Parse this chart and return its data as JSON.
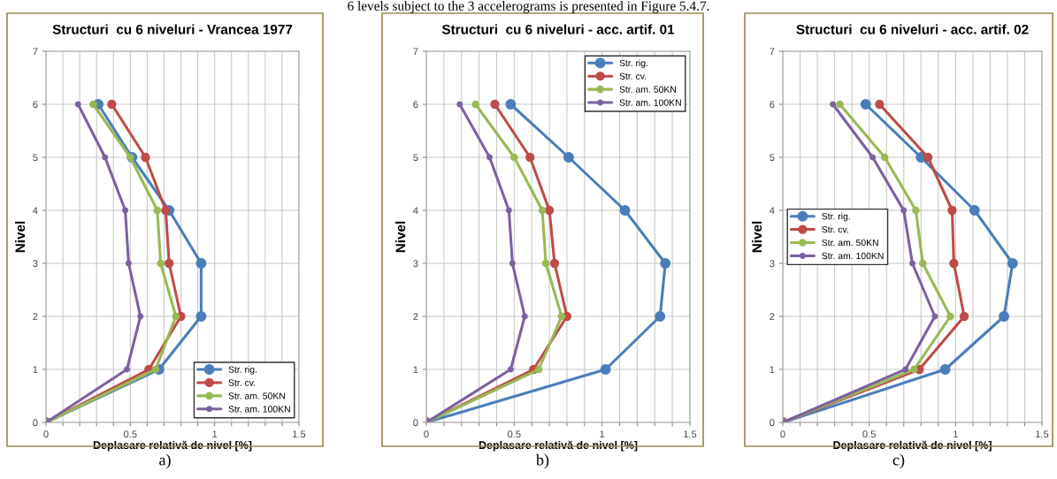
{
  "chart_data": [
    {
      "type": "line",
      "title": "Structuri  cu 6 niveluri - Vrancea 1977",
      "xlabel": "Deplasare relativă de nivel [%]",
      "ylabel": "Nivel",
      "marker": "circle",
      "grid": true,
      "legend": "bottom right",
      "xlim": [
        0,
        1.5
      ],
      "ylim": [
        0,
        7
      ],
      "xticks": [
        0,
        {
          "value": 0.1,
          "label": null
        },
        {
          "value": 0.2,
          "label": null
        },
        {
          "value": 0.3,
          "label": null
        },
        {
          "value": 0.4,
          "label": null
        },
        0.5,
        {
          "value": 0.6,
          "label": null
        },
        {
          "value": 0.7,
          "label": null
        },
        {
          "value": 0.8,
          "label": null
        },
        {
          "value": 0.9,
          "label": null
        },
        1,
        {
          "value": 1.1,
          "label": null
        },
        {
          "value": 1.2,
          "label": null
        },
        {
          "value": 1.3,
          "label": null
        },
        {
          "value": 1.4,
          "label": null
        },
        1.5
      ],
      "yticks": [
        0,
        1,
        2,
        3,
        4,
        5,
        6,
        7
      ],
      "annotations": [
        "6 levels subject to the 3 accelerograms is presented in Figure 5.4.7.",
        "a)"
      ],
      "series": [
        {
          "name": "Str. rig.",
          "color": "#4a7ebb",
          "x": [
            0,
            0.67,
            0.92,
            0.92,
            0.73,
            0.51,
            0.31
          ],
          "values": [
            0,
            1,
            2,
            3,
            4,
            5,
            6
          ]
        },
        {
          "name": "Str. cv.",
          "color": "#be4b48",
          "x": [
            0,
            0.61,
            0.8,
            0.73,
            0.71,
            0.59,
            0.39
          ],
          "values": [
            0,
            1,
            2,
            3,
            4,
            5,
            6
          ]
        },
        {
          "name": "Str. am. 50KN",
          "color": "#98b954",
          "x": [
            0,
            0.65,
            0.77,
            0.68,
            0.66,
            0.5,
            0.28
          ],
          "values": [
            0,
            1,
            2,
            3,
            4,
            5,
            6
          ]
        },
        {
          "name": "Str. am. 100KN",
          "color": "#7d60a0",
          "x": [
            0,
            0.48,
            0.56,
            0.49,
            0.47,
            0.35,
            0.19
          ],
          "values": [
            0,
            1,
            2,
            3,
            4,
            5,
            6
          ]
        }
      ]
    },
    {
      "type": "line",
      "title": "Structuri  cu 6 niveluri - acc. artif. 01",
      "xlabel": "Deplasare relativă de nivel [%]",
      "ylabel": "Nivel",
      "marker": "circle",
      "grid": true,
      "legend": "top right",
      "xlim": [
        0,
        1.5
      ],
      "ylim": [
        0,
        7
      ],
      "xticks": [
        0,
        {
          "value": 0.1,
          "label": null
        },
        {
          "value": 0.2,
          "label": null
        },
        {
          "value": 0.3,
          "label": null
        },
        {
          "value": 0.4,
          "label": null
        },
        0.5,
        {
          "value": 0.6,
          "label": null
        },
        {
          "value": 0.7,
          "label": null
        },
        {
          "value": 0.8,
          "label": null
        },
        {
          "value": 0.9,
          "label": null
        },
        1,
        {
          "value": 1.1,
          "label": null
        },
        {
          "value": 1.2,
          "label": null
        },
        {
          "value": 1.3,
          "label": null
        },
        {
          "value": 1.4,
          "label": null
        },
        1.5
      ],
      "yticks": [
        0,
        1,
        2,
        3,
        4,
        5,
        6,
        7
      ],
      "annotations": [
        "b)"
      ],
      "series": [
        {
          "name": "Str. rig.",
          "color": "#4a7ebb",
          "x": [
            0,
            1.02,
            1.33,
            1.36,
            1.13,
            0.81,
            0.48
          ],
          "values": [
            0,
            1,
            2,
            3,
            4,
            5,
            6
          ]
        },
        {
          "name": "Str. cv.",
          "color": "#be4b48",
          "x": [
            0,
            0.61,
            0.8,
            0.73,
            0.7,
            0.59,
            0.39
          ],
          "values": [
            0,
            1,
            2,
            3,
            4,
            5,
            6
          ]
        },
        {
          "name": "Str. am. 50KN",
          "color": "#98b954",
          "x": [
            0,
            0.64,
            0.77,
            0.68,
            0.66,
            0.5,
            0.28
          ],
          "values": [
            0,
            1,
            2,
            3,
            4,
            5,
            6
          ]
        },
        {
          "name": "Str. am. 100KN",
          "color": "#7d60a0",
          "x": [
            0,
            0.48,
            0.56,
            0.49,
            0.47,
            0.36,
            0.19
          ],
          "values": [
            0,
            1,
            2,
            3,
            4,
            5,
            6
          ]
        }
      ]
    },
    {
      "type": "line",
      "title": "Structuri  cu 6 niveluri - acc. artif. 02",
      "xlabel": "Deplasare relativă de nivel [%]",
      "ylabel": "Nivel",
      "marker": "circle",
      "grid": true,
      "legend": "center left",
      "xlim": [
        0,
        1.5
      ],
      "ylim": [
        0,
        7
      ],
      "xticks": [
        0,
        {
          "value": 0.1,
          "label": null
        },
        {
          "value": 0.2,
          "label": null
        },
        {
          "value": 0.3,
          "label": null
        },
        {
          "value": 0.4,
          "label": null
        },
        0.5,
        {
          "value": 0.6,
          "label": null
        },
        {
          "value": 0.7,
          "label": null
        },
        {
          "value": 0.8,
          "label": null
        },
        {
          "value": 0.9,
          "label": null
        },
        1,
        {
          "value": 1.1,
          "label": null
        },
        {
          "value": 1.2,
          "label": null
        },
        {
          "value": 1.3,
          "label": null
        },
        {
          "value": 1.4,
          "label": null
        },
        1.5
      ],
      "yticks": [
        0,
        1,
        2,
        3,
        4,
        5,
        6,
        7
      ],
      "annotations": [
        "c)"
      ],
      "series": [
        {
          "name": "Str. rig.",
          "color": "#4a7ebb",
          "x": [
            0,
            0.94,
            1.28,
            1.33,
            1.11,
            0.8,
            0.48
          ],
          "values": [
            0,
            1,
            2,
            3,
            4,
            5,
            6
          ]
        },
        {
          "name": "Str. cv.",
          "color": "#be4b48",
          "x": [
            0,
            0.79,
            1.05,
            0.99,
            0.98,
            0.84,
            0.56
          ],
          "values": [
            0,
            1,
            2,
            3,
            4,
            5,
            6
          ]
        },
        {
          "name": "Str. am. 50KN",
          "color": "#98b954",
          "x": [
            0,
            0.76,
            0.97,
            0.81,
            0.77,
            0.59,
            0.33
          ],
          "values": [
            0,
            1,
            2,
            3,
            4,
            5,
            6
          ]
        },
        {
          "name": "Str. am. 100KN",
          "color": "#7d60a0",
          "x": [
            0,
            0.71,
            0.88,
            0.75,
            0.7,
            0.52,
            0.29
          ],
          "values": [
            0,
            1,
            2,
            3,
            4,
            5,
            6
          ]
        }
      ]
    }
  ]
}
